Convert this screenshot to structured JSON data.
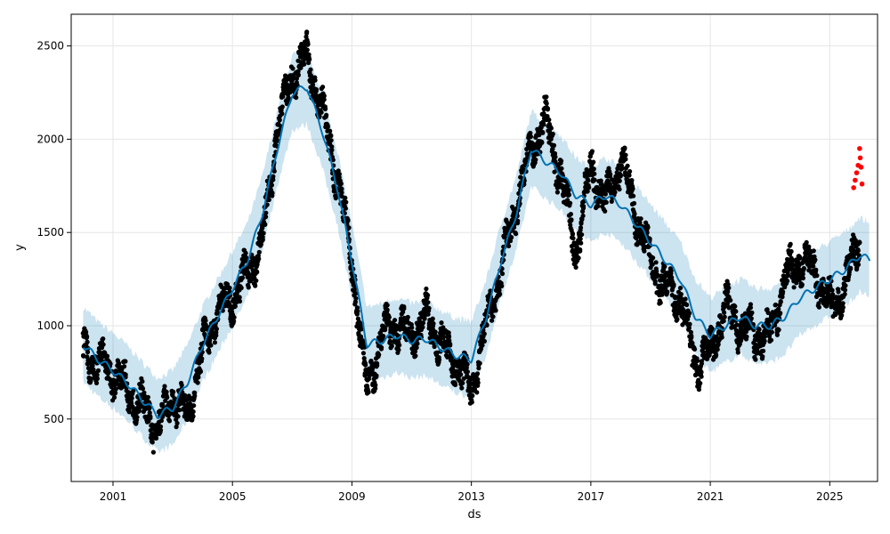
{
  "chart_data": {
    "type": "line",
    "xlabel": "ds",
    "ylabel": "y",
    "xlim": [
      1999.6,
      2026.6
    ],
    "ylim": [
      165,
      2670
    ],
    "x_ticks": [
      2001,
      2005,
      2009,
      2013,
      2017,
      2021,
      2025
    ],
    "x_tick_labels": [
      "2001",
      "2005",
      "2009",
      "2013",
      "2017",
      "2021",
      "2025"
    ],
    "y_ticks": [
      500,
      1000,
      1500,
      2000,
      2500
    ],
    "y_tick_labels": [
      "500",
      "1000",
      "1500",
      "2000",
      "2500"
    ],
    "grid": true,
    "colors": {
      "observed": "#000000",
      "forecast_line": "#0072B2",
      "uncertainty": "#0072B2",
      "outliers": "#ff0000",
      "grid": "#e6e6e6"
    },
    "observed_anchors": {
      "x": [
        2000.0,
        2000.5,
        2001.0,
        2001.5,
        2002.0,
        2002.5,
        2003.0,
        2003.5,
        2004.0,
        2004.5,
        2005.0,
        2005.5,
        2006.0,
        2006.5,
        2007.0,
        2007.5,
        2008.0,
        2008.5,
        2009.0,
        2009.5,
        2010.0,
        2010.5,
        2011.0,
        2011.5,
        2012.0,
        2012.5,
        2013.0,
        2013.5,
        2014.0,
        2014.5,
        2015.0,
        2015.5,
        2016.0,
        2016.5,
        2017.0,
        2017.5,
        2018.0,
        2018.5,
        2019.0,
        2019.5,
        2020.0,
        2020.5,
        2021.0,
        2021.5,
        2022.0,
        2022.5,
        2023.0,
        2023.5,
        2024.0,
        2024.5,
        2025.0,
        2025.5,
        2026.0
      ],
      "y": [
        850,
        800,
        760,
        640,
        560,
        450,
        620,
        520,
        870,
        1080,
        1150,
        1280,
        1450,
        2050,
        2350,
        2450,
        2150,
        1800,
        1350,
        650,
        950,
        1000,
        950,
        1050,
        900,
        800,
        650,
        1000,
        1300,
        1650,
        1950,
        2100,
        1800,
        1400,
        1850,
        1650,
        1900,
        1600,
        1350,
        1200,
        1150,
        800,
        850,
        1100,
        1000,
        950,
        950,
        1250,
        1350,
        1300,
        1100,
        1200,
        1500
      ]
    },
    "forecast": {
      "x": [
        2000.0,
        2000.5,
        2001.0,
        2001.5,
        2002.0,
        2002.5,
        2003.0,
        2003.5,
        2004.0,
        2004.5,
        2005.0,
        2005.5,
        2006.0,
        2006.5,
        2007.0,
        2007.5,
        2008.0,
        2008.5,
        2009.0,
        2009.5,
        2010.0,
        2010.5,
        2011.0,
        2011.5,
        2012.0,
        2012.5,
        2013.0,
        2013.5,
        2014.0,
        2014.5,
        2015.0,
        2015.5,
        2016.0,
        2016.5,
        2017.0,
        2017.5,
        2018.0,
        2018.5,
        2019.0,
        2019.5,
        2020.0,
        2020.5,
        2021.0,
        2021.5,
        2022.0,
        2022.5,
        2023.0,
        2023.5,
        2024.0,
        2024.5,
        2025.0,
        2025.5,
        2026.0,
        2026.35
      ],
      "yhat": [
        900,
        820,
        760,
        690,
        600,
        520,
        560,
        700,
        900,
        1050,
        1200,
        1350,
        1600,
        1950,
        2250,
        2280,
        2050,
        1750,
        1350,
        900,
        920,
        950,
        920,
        930,
        880,
        840,
        820,
        1050,
        1350,
        1600,
        1950,
        1880,
        1820,
        1700,
        1650,
        1700,
        1650,
        1550,
        1450,
        1350,
        1250,
        1050,
        950,
        1000,
        1050,
        1000,
        1000,
        1050,
        1150,
        1200,
        1250,
        1300,
        1380,
        1350
      ],
      "band_halfwidth": 200
    },
    "outliers": {
      "x": [
        2025.8,
        2025.85,
        2025.9,
        2025.95,
        2026.0,
        2026.02,
        2026.05,
        2026.08
      ],
      "y": [
        1740,
        1780,
        1820,
        1860,
        1950,
        1900,
        1850,
        1760
      ]
    }
  }
}
